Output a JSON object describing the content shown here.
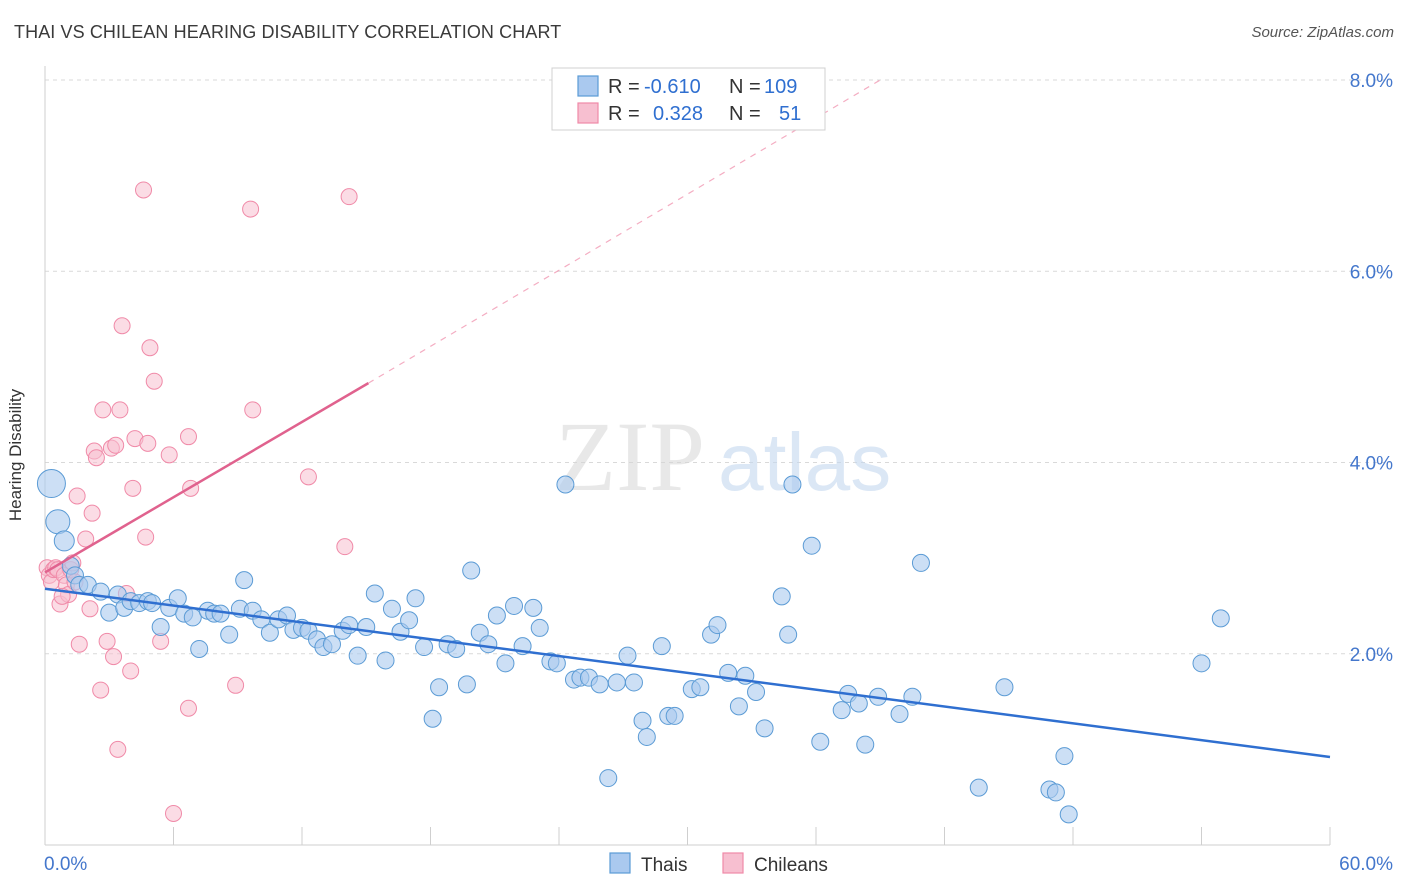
{
  "title": "THAI VS CHILEAN HEARING DISABILITY CORRELATION CHART",
  "source": "Source: ZipAtlas.com",
  "watermark": {
    "zip": "ZIP",
    "atlas": "atlas"
  },
  "colors": {
    "thais": "#5b9bd5",
    "thais_fill": "#aac9ef",
    "thais_line": "#2f6fd0",
    "chileans": "#f08aa8",
    "chileans_fill": "#f7bfd0",
    "chileans_line": "#e0628e",
    "axis_text": "#4477cc",
    "grid": "#d9d9d9"
  },
  "legend_box": {
    "rows": [
      {
        "r_label": "R =",
        "r_value": "-0.610",
        "n_label": "N =",
        "n_value": "109",
        "series": "thais"
      },
      {
        "r_label": "R =",
        "r_value": "0.328",
        "n_label": "N =",
        "n_value": "51",
        "series": "chileans"
      }
    ]
  },
  "chart_data": {
    "type": "scatter",
    "title": "THAI VS CHILEAN HEARING DISABILITY CORRELATION CHART",
    "xlabel": "",
    "ylabel": "Hearing Disability",
    "xlim": [
      0,
      60
    ],
    "ylim": [
      0,
      8.0
    ],
    "x_tick_labels": [
      "0.0%",
      "60.0%"
    ],
    "y_tick_labels": [
      "2.0%",
      "4.0%",
      "6.0%",
      "8.0%"
    ],
    "y_ticks": [
      2,
      4,
      6,
      8
    ],
    "grid": "horizontal dashed",
    "legend_position": "bottom-center",
    "series": [
      {
        "name": "Thais",
        "r": -0.61,
        "n": 109,
        "trend": {
          "x0": 0,
          "y0": 2.68,
          "x1": 60,
          "y1": 0.92
        },
        "points": [
          [
            0.3,
            3.78
          ],
          [
            0.6,
            3.38
          ],
          [
            0.9,
            3.18
          ],
          [
            1.2,
            2.92
          ],
          [
            1.4,
            2.82
          ],
          [
            1.6,
            2.72
          ],
          [
            2.0,
            2.72
          ],
          [
            2.6,
            2.65
          ],
          [
            3.0,
            2.43
          ],
          [
            3.4,
            2.62
          ],
          [
            3.7,
            2.48
          ],
          [
            4.0,
            2.55
          ],
          [
            4.4,
            2.53
          ],
          [
            4.8,
            2.55
          ],
          [
            5.0,
            2.53
          ],
          [
            5.4,
            2.28
          ],
          [
            5.8,
            2.48
          ],
          [
            6.2,
            2.58
          ],
          [
            6.5,
            2.42
          ],
          [
            6.9,
            2.38
          ],
          [
            7.2,
            2.05
          ],
          [
            7.6,
            2.45
          ],
          [
            7.9,
            2.42
          ],
          [
            8.2,
            2.42
          ],
          [
            8.6,
            2.2
          ],
          [
            9.1,
            2.47
          ],
          [
            9.3,
            2.77
          ],
          [
            9.7,
            2.45
          ],
          [
            10.1,
            2.36
          ],
          [
            10.5,
            2.22
          ],
          [
            10.9,
            2.36
          ],
          [
            11.3,
            2.4
          ],
          [
            11.6,
            2.25
          ],
          [
            12.0,
            2.27
          ],
          [
            12.3,
            2.24
          ],
          [
            12.7,
            2.15
          ],
          [
            13.0,
            2.07
          ],
          [
            13.4,
            2.1
          ],
          [
            13.9,
            2.24
          ],
          [
            14.2,
            2.3
          ],
          [
            14.6,
            1.98
          ],
          [
            15.0,
            2.28
          ],
          [
            15.4,
            2.63
          ],
          [
            15.9,
            1.93
          ],
          [
            16.2,
            2.47
          ],
          [
            16.6,
            2.23
          ],
          [
            17.0,
            2.35
          ],
          [
            17.3,
            2.58
          ],
          [
            17.7,
            2.07
          ],
          [
            18.1,
            1.32
          ],
          [
            18.4,
            1.65
          ],
          [
            18.8,
            2.1
          ],
          [
            19.2,
            2.05
          ],
          [
            19.7,
            1.68
          ],
          [
            19.9,
            2.87
          ],
          [
            20.3,
            2.22
          ],
          [
            20.7,
            2.1
          ],
          [
            21.1,
            2.4
          ],
          [
            21.5,
            1.9
          ],
          [
            21.9,
            2.5
          ],
          [
            22.3,
            2.08
          ],
          [
            22.8,
            2.48
          ],
          [
            23.1,
            2.27
          ],
          [
            23.6,
            1.92
          ],
          [
            23.9,
            1.9
          ],
          [
            24.3,
            3.77
          ],
          [
            24.7,
            1.73
          ],
          [
            25.0,
            1.75
          ],
          [
            25.4,
            1.75
          ],
          [
            25.9,
            1.68
          ],
          [
            26.3,
            0.7
          ],
          [
            26.7,
            1.7
          ],
          [
            27.2,
            1.98
          ],
          [
            27.5,
            1.7
          ],
          [
            27.9,
            1.3
          ],
          [
            28.1,
            1.13
          ],
          [
            28.8,
            2.08
          ],
          [
            29.1,
            1.35
          ],
          [
            29.4,
            1.35
          ],
          [
            30.2,
            1.63
          ],
          [
            30.6,
            1.65
          ],
          [
            31.1,
            2.2
          ],
          [
            31.4,
            2.3
          ],
          [
            31.9,
            1.8
          ],
          [
            32.4,
            1.45
          ],
          [
            32.7,
            1.77
          ],
          [
            33.2,
            1.6
          ],
          [
            33.6,
            1.22
          ],
          [
            34.4,
            2.6
          ],
          [
            34.7,
            2.2
          ],
          [
            34.9,
            3.77
          ],
          [
            35.8,
            3.13
          ],
          [
            36.2,
            1.08
          ],
          [
            37.2,
            1.41
          ],
          [
            37.5,
            1.58
          ],
          [
            38.0,
            1.48
          ],
          [
            38.3,
            1.05
          ],
          [
            38.9,
            1.55
          ],
          [
            39.9,
            1.37
          ],
          [
            40.5,
            1.55
          ],
          [
            40.9,
            2.95
          ],
          [
            43.6,
            0.6
          ],
          [
            44.8,
            1.65
          ],
          [
            46.9,
            0.58
          ],
          [
            47.2,
            0.55
          ],
          [
            47.6,
            0.93
          ],
          [
            47.8,
            0.32
          ],
          [
            54.0,
            1.9
          ],
          [
            54.9,
            2.37
          ]
        ]
      },
      {
        "name": "Chileans",
        "r": 0.328,
        "n": 51,
        "trend": {
          "x0": 0,
          "y0": 2.85,
          "x1": 15.1,
          "y1": 4.83,
          "ext_x1": 39.0,
          "ext_y1": 8.0
        },
        "points": [
          [
            0.1,
            2.9
          ],
          [
            0.2,
            2.82
          ],
          [
            0.3,
            2.75
          ],
          [
            0.4,
            2.88
          ],
          [
            0.5,
            2.9
          ],
          [
            0.6,
            2.88
          ],
          [
            0.7,
            2.52
          ],
          [
            0.9,
            2.82
          ],
          [
            1.0,
            2.72
          ],
          [
            1.1,
            2.62
          ],
          [
            1.2,
            2.88
          ],
          [
            1.4,
            2.75
          ],
          [
            1.5,
            3.65
          ],
          [
            1.6,
            2.1
          ],
          [
            1.9,
            3.2
          ],
          [
            2.1,
            2.47
          ],
          [
            2.2,
            3.47
          ],
          [
            2.3,
            4.12
          ],
          [
            2.4,
            4.05
          ],
          [
            2.6,
            1.62
          ],
          [
            2.7,
            4.55
          ],
          [
            2.9,
            2.13
          ],
          [
            3.1,
            4.15
          ],
          [
            3.2,
            1.97
          ],
          [
            3.3,
            4.18
          ],
          [
            3.4,
            1.0
          ],
          [
            3.5,
            4.55
          ],
          [
            3.6,
            5.43
          ],
          [
            3.8,
            2.63
          ],
          [
            4.0,
            1.82
          ],
          [
            4.1,
            3.73
          ],
          [
            4.2,
            4.25
          ],
          [
            4.6,
            6.85
          ],
          [
            4.7,
            3.22
          ],
          [
            4.8,
            4.2
          ],
          [
            4.9,
            5.2
          ],
          [
            5.1,
            4.85
          ],
          [
            5.4,
            2.13
          ],
          [
            5.8,
            4.08
          ],
          [
            6.0,
            0.33
          ],
          [
            6.7,
            4.27
          ],
          [
            6.7,
            1.43
          ],
          [
            6.8,
            3.73
          ],
          [
            8.9,
            1.67
          ],
          [
            9.6,
            6.65
          ],
          [
            9.7,
            4.55
          ],
          [
            12.3,
            3.85
          ],
          [
            14.0,
            3.12
          ],
          [
            14.2,
            6.78
          ],
          [
            1.3,
            2.95
          ],
          [
            0.8,
            2.6
          ]
        ]
      }
    ]
  }
}
